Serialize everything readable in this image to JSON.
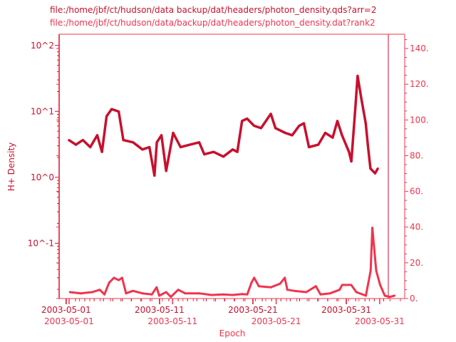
{
  "chart_data": [
    {
      "type": "line",
      "title": "file:/home/jbf/ct/hudson/data backup/dat/headers/photon_density.qds?arr=2",
      "xlabel": "",
      "ylabel": "H+ Density",
      "yscale": "log",
      "ylim": [
        0.0145,
        148
      ],
      "xlim": [
        "2003-04-30 06:00",
        "2003-06-04 12:00"
      ],
      "grid": false,
      "color": "#c8102e",
      "x_tick_labels": [
        "2003-05-01",
        "2003-05-11",
        "2003-05-21",
        "2003-05-31"
      ],
      "x_ticks": [
        "2003-05-01 00:00",
        "2003-05-11 00:00",
        "2003-05-21 00:00",
        "2003-05-31 00:00"
      ],
      "y_tick_labels": [
        "10^-1",
        "10^0",
        "10^1",
        "10^2"
      ],
      "y_ticks": [
        0.1,
        1,
        10,
        100
      ],
      "series": [
        {
          "x": [
            "2003-05-01 07:00",
            "2003-05-02 01:00",
            "2003-05-02 19:00",
            "2003-05-03 14:00",
            "2003-05-04 08:00",
            "2003-05-04 20:00",
            "2003-05-05 08:00",
            "2003-05-05 21:00",
            "2003-05-06 15:00",
            "2003-05-07 03:00",
            "2003-05-08 04:00",
            "2003-05-09 04:00",
            "2003-05-09 22:00",
            "2003-05-10 11:00",
            "2003-05-10 17:00",
            "2003-05-11 05:00",
            "2003-05-11 17:00",
            "2003-05-12 11:00",
            "2003-05-13 06:00",
            "2003-05-14 06:00",
            "2003-05-15 06:00",
            "2003-05-15 19:00",
            "2003-05-16 19:00",
            "2003-05-17 20:00",
            "2003-05-18 20:00",
            "2003-05-19 08:00",
            "2003-05-19 20:00",
            "2003-05-20 09:00",
            "2003-05-21 03:00",
            "2003-05-21 21:00",
            "2003-05-22 22:00",
            "2003-05-23 10:00",
            "2003-05-24 11:00",
            "2003-05-25 05:00",
            "2003-05-25 23:00",
            "2003-05-26 11:00",
            "2003-05-27 00:00",
            "2003-05-28 00:00",
            "2003-05-28 18:00",
            "2003-05-29 13:00",
            "2003-05-30 01:00",
            "2003-05-30 13:00",
            "2003-05-31 07:00",
            "2003-05-31 13:00",
            "2003-05-31 23:00",
            "2003-06-01 05:00",
            "2003-06-01 14:00",
            "2003-06-02 02:00",
            "2003-06-02 08:00",
            "2003-06-02 14:00",
            "2003-06-03 02:00",
            "2003-06-03 09:00"
          ],
          "y": [
            3.67,
            3.12,
            3.67,
            2.87,
            4.34,
            2.43,
            8.44,
            10.8,
            9.95,
            3.67,
            3.39,
            2.64,
            2.87,
            1.06,
            3.39,
            4.34,
            1.25,
            4.72,
            2.87,
            3.12,
            3.39,
            2.23,
            2.43,
            2.06,
            2.64,
            2.43,
            7.15,
            7.76,
            6.05,
            5.57,
            9.16,
            5.57,
            4.72,
            4.34,
            6.05,
            6.58,
            2.87,
            3.12,
            4.72,
            4.0,
            7.15,
            4.34,
            2.43,
            1.74,
            10.8,
            34.5,
            16.4,
            6.58,
            2.87,
            1.36,
            1.15,
            1.36
          ]
        }
      ]
    },
    {
      "type": "line",
      "title": "file:/home/jbf/ct/hudson/data/backup/dat/headers/photon_density.dat?rank2",
      "xlabel": "Epoch",
      "ylabel": "",
      "yscale": "linear",
      "ylim": [
        0,
        148
      ],
      "xlim": [
        "2003-04-30 01:00",
        "2003-06-02 10:00"
      ],
      "grid": false,
      "color": "#f0344e",
      "x_tick_labels": [
        "2003-05-01",
        "2003-05-11",
        "2003-05-21",
        "2003-05-31"
      ],
      "x_ticks": [
        "2003-05-01 00:00",
        "2003-05-11 00:00",
        "2003-05-21 00:00",
        "2003-05-31 00:00"
      ],
      "y_tick_labels": [
        "0.",
        "20.",
        "40.",
        "60.",
        "80.",
        "100.",
        "120.",
        "140."
      ],
      "y_ticks": [
        0,
        20,
        40,
        60,
        80,
        100,
        120,
        140
      ],
      "series": [
        {
          "x": [
            "2003-05-01 02:00",
            "2003-05-02 03:00",
            "2003-05-03 06:00",
            "2003-05-03 23:00",
            "2003-05-04 10:00",
            "2003-05-04 21:00",
            "2003-05-05 08:00",
            "2003-05-05 19:00",
            "2003-05-06 03:00",
            "2003-05-06 12:00",
            "2003-05-07 04:00",
            "2003-05-08 02:00",
            "2003-05-09 00:00",
            "2003-05-09 11:00",
            "2003-05-09 17:00",
            "2003-05-10 09:00",
            "2003-05-10 20:00",
            "2003-05-11 13:00",
            "2003-05-12 05:00",
            "2003-05-13 14:00",
            "2003-05-14 18:00",
            "2003-05-15 21:00",
            "2003-05-16 19:00",
            "2003-05-17 17:00",
            "2003-05-18 05:00",
            "2003-05-18 15:00",
            "2003-05-18 21:00",
            "2003-05-19 08:00",
            "2003-05-20 12:00",
            "2003-05-21 09:00",
            "2003-05-21 20:00",
            "2003-05-22 02:00",
            "2003-05-22 18:00",
            "2003-05-23 22:00",
            "2003-05-24 20:00",
            "2003-05-25 07:00",
            "2003-05-26 05:00",
            "2003-05-27 03:00",
            "2003-05-27 09:00",
            "2003-05-28 06:00",
            "2003-05-28 18:00",
            "2003-05-29 16:00",
            "2003-05-30 03:00",
            "2003-05-30 07:00",
            "2003-05-30 11:00",
            "2003-05-30 16:00",
            "2003-05-31 01:00",
            "2003-05-31 12:00",
            "2003-05-31 23:00",
            "2003-06-01 10:00"
          ],
          "y": [
            3.6,
            2.9,
            3.6,
            4.9,
            2.3,
            8.9,
            11.6,
            10.3,
            11.6,
            2.9,
            4.3,
            2.9,
            2.3,
            6.3,
            1.6,
            3.6,
            0.9,
            4.9,
            2.9,
            2.9,
            2.0,
            2.3,
            2.0,
            2.5,
            2.3,
            8.9,
            11.6,
            6.9,
            6.3,
            8.3,
            11.6,
            4.9,
            4.3,
            3.6,
            6.9,
            2.3,
            2.9,
            4.9,
            7.6,
            7.6,
            3.6,
            1.6,
            15.6,
            39.6,
            28.9,
            15.6,
            7.6,
            1.6,
            0.9,
            1.6
          ]
        }
      ]
    }
  ]
}
